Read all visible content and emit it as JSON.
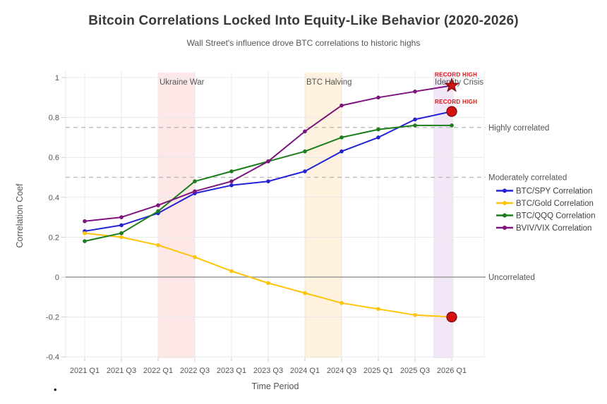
{
  "chart_data": {
    "type": "line",
    "title": "Bitcoin Correlations Locked Into Equity-Like Behavior (2020-2026)",
    "subtitle": "Wall Street's influence drove BTC correlations to historic highs",
    "xlabel": "Time Period",
    "ylabel": "Correlation Coef",
    "ylim": [
      -0.45,
      1.05
    ],
    "yticks": [
      1,
      0.8,
      0.6,
      0.4,
      0.2,
      0,
      -0.2,
      -0.4
    ],
    "grid": true,
    "legend_position": "right",
    "categories": [
      "2021 Q1",
      "2021 Q3",
      "2022 Q1",
      "2022 Q3",
      "2023 Q1",
      "2023 Q3",
      "2024 Q1",
      "2024 Q3",
      "2025 Q1",
      "2025 Q3",
      "2026 Q1"
    ],
    "series": [
      {
        "name": "BTC/SPY Correlation",
        "color": "#2222d6",
        "values": [
          0.23,
          0.26,
          0.32,
          0.42,
          0.46,
          0.48,
          0.53,
          0.63,
          0.7,
          0.79,
          0.83
        ]
      },
      {
        "name": "BTC/Gold Correlation",
        "color": "#ffc408",
        "values": [
          0.22,
          0.2,
          0.16,
          0.1,
          0.03,
          -0.03,
          -0.08,
          -0.13,
          -0.16,
          -0.19,
          -0.2
        ]
      },
      {
        "name": "BTC/QQQ Correlation",
        "color": "#1b7d1b",
        "values": [
          0.18,
          0.22,
          0.33,
          0.48,
          0.53,
          0.58,
          0.63,
          0.7,
          0.74,
          0.76,
          0.76
        ]
      },
      {
        "name": "BVIV/VIX Correlation",
        "color": "#7d137d",
        "values": [
          0.28,
          0.3,
          0.36,
          0.43,
          0.48,
          0.58,
          0.73,
          0.86,
          0.9,
          0.93,
          0.96
        ]
      }
    ],
    "reference_lines": [
      {
        "value": 0.75,
        "label": "Highly correlated",
        "style": "dashed"
      },
      {
        "value": 0.5,
        "label": "Moderately correlated",
        "style": "dashed"
      },
      {
        "value": 0,
        "label": "Uncorrelated",
        "style": "solid"
      }
    ],
    "bands": [
      {
        "label": "Ukraine War",
        "x0_index": 2,
        "x1_index": 3,
        "color": "rgba(235,60,60,0.12)"
      },
      {
        "label": "BTC Halving",
        "x0_index": 6,
        "x1_index": 7,
        "color": "rgba(245,160,20,0.14)"
      },
      {
        "label": "Identity Crisis",
        "x0_index": 9.5,
        "x1_index": 10.05,
        "color": "rgba(150,60,180,0.12)"
      }
    ],
    "point_annotations": [
      {
        "label": "RECORD HIGH",
        "series_index": 3,
        "category_index": 10,
        "value": 0.96,
        "marker": "star"
      },
      {
        "label": "RECORD HIGH",
        "series_index": 0,
        "category_index": 10,
        "value": 0.83,
        "marker": "circle"
      },
      {
        "label": "",
        "series_index": 1,
        "category_index": 10,
        "value": -0.2,
        "marker": "circle"
      }
    ],
    "annotation_marker_color": "#d31212",
    "annotation_text_color": "#e01212"
  },
  "misc": {
    "stray_bullet": "•"
  }
}
